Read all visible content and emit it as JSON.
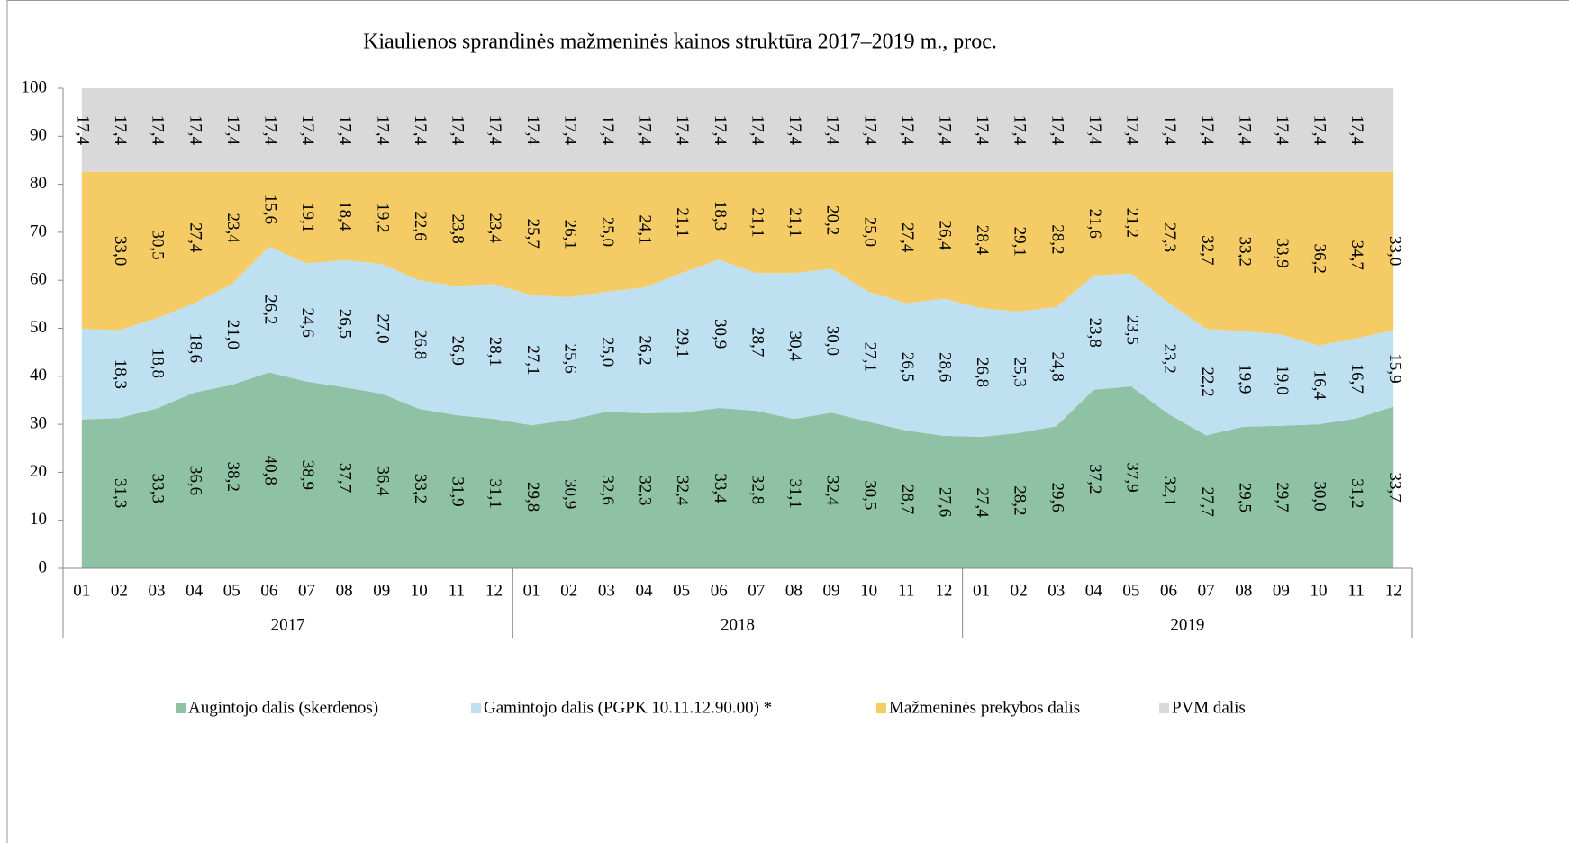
{
  "chart_data": {
    "type": "stacked_area",
    "title": "Kiaulienos sprandinės mažmeninės  kainos struktūra 2017–2019 m., proc.",
    "categories": [
      "01",
      "02",
      "03",
      "04",
      "05",
      "06",
      "07",
      "08",
      "09",
      "10",
      "11",
      "12",
      "01",
      "02",
      "03",
      "04",
      "05",
      "06",
      "07",
      "08",
      "09",
      "10",
      "11",
      "12",
      "01",
      "02",
      "03",
      "04",
      "05",
      "06",
      "07",
      "08",
      "09",
      "10",
      "11",
      "12"
    ],
    "category_groups": [
      "2017",
      "2018",
      "2019"
    ],
    "ylim": [
      0,
      100
    ],
    "yticks": [
      0,
      10,
      20,
      30,
      40,
      50,
      60,
      70,
      80,
      90,
      100
    ],
    "legend": "bottom",
    "series": [
      {
        "name": "Augintojo dalis (skerdenos)",
        "color": "#8fc1a4",
        "values": [
          31.0,
          31.3,
          33.3,
          36.6,
          38.2,
          40.8,
          38.9,
          37.7,
          36.4,
          33.2,
          31.9,
          31.1,
          29.8,
          30.9,
          32.6,
          32.3,
          32.4,
          33.4,
          32.8,
          31.1,
          32.4,
          30.5,
          28.7,
          27.6,
          27.4,
          28.2,
          29.6,
          37.2,
          37.9,
          32.1,
          27.7,
          29.5,
          29.7,
          30.0,
          31.2,
          33.7
        ],
        "value_labels": [
          null,
          "31,3",
          "33,3",
          "36,6",
          "38,2",
          "40,8",
          "38,9",
          "37,7",
          "36,4",
          "33,2",
          "31,9",
          "31,1",
          "29,8",
          "30,9",
          "32,6",
          "32,3",
          "32,4",
          "33,4",
          "32,8",
          "31,1",
          "32,4",
          "30,5",
          "28,7",
          "27,6",
          "27,4",
          "28,2",
          "29,6",
          "37,2",
          "37,9",
          "32,1",
          "27,7",
          "29,5",
          "29,7",
          "30,0",
          "31,2",
          "33,7"
        ]
      },
      {
        "name": "Gamintojo dalis (PGPK 10.11.12.90.00) *",
        "color": "#bfe0f0",
        "values": [
          18.9,
          18.3,
          18.8,
          18.6,
          21.0,
          26.2,
          24.6,
          26.5,
          27.0,
          26.8,
          26.9,
          28.1,
          27.1,
          25.6,
          25.0,
          26.2,
          29.1,
          30.9,
          28.7,
          30.4,
          30.0,
          27.1,
          26.5,
          28.6,
          26.8,
          25.3,
          24.8,
          23.8,
          23.5,
          23.2,
          22.2,
          19.9,
          19.0,
          16.4,
          16.7,
          15.9
        ],
        "value_labels": [
          null,
          "18,3",
          "18,8",
          "18,6",
          "21,0",
          "26,2",
          "24,6",
          "26,5",
          "27,0",
          "26,8",
          "26,9",
          "28,1",
          "27,1",
          "25,6",
          "25,0",
          "26,2",
          "29,1",
          "30,9",
          "28,7",
          "30,4",
          "30,0",
          "27,1",
          "26,5",
          "28,6",
          "26,8",
          "25,3",
          "24,8",
          "23,8",
          "23,5",
          "23,2",
          "22,2",
          "19,9",
          "19,0",
          "16,4",
          "16,7",
          "15,9"
        ]
      },
      {
        "name": "Mažmeninės prekybos dalis",
        "color": "#f5cb66",
        "values": [
          32.7,
          33.0,
          30.5,
          27.4,
          23.4,
          15.6,
          19.1,
          18.4,
          19.2,
          22.6,
          23.8,
          23.4,
          25.7,
          26.1,
          25.0,
          24.1,
          21.1,
          18.3,
          21.1,
          21.1,
          20.2,
          25.0,
          27.4,
          26.4,
          28.4,
          29.1,
          28.2,
          21.6,
          21.2,
          27.3,
          32.7,
          33.2,
          33.9,
          36.2,
          34.7,
          33.0
        ],
        "value_labels": [
          null,
          "33,0",
          "30,5",
          "27,4",
          "23,4",
          "15,6",
          "19,1",
          "18,4",
          "19,2",
          "22,6",
          "23,8",
          "23,4",
          "25,7",
          "26,1",
          "25,0",
          "24,1",
          "21,1",
          "18,3",
          "21,1",
          "21,1",
          "20,2",
          "25,0",
          "27,4",
          "26,4",
          "28,4",
          "29,1",
          "28,2",
          "21,6",
          "21,2",
          "27,3",
          "32,7",
          "33,2",
          "33,9",
          "36,2",
          "34,7",
          "33,0"
        ]
      },
      {
        "name": "PVM dalis",
        "color": "#d9d9d9",
        "values": [
          17.4,
          17.4,
          17.4,
          17.4,
          17.4,
          17.4,
          17.4,
          17.4,
          17.4,
          17.4,
          17.4,
          17.4,
          17.4,
          17.4,
          17.4,
          17.4,
          17.4,
          17.4,
          17.4,
          17.4,
          17.4,
          17.4,
          17.4,
          17.4,
          17.4,
          17.4,
          17.4,
          17.4,
          17.4,
          17.4,
          17.4,
          17.4,
          17.4,
          17.4,
          17.4,
          17.4
        ],
        "value_labels": [
          "17,4",
          "17,4",
          "17,4",
          "17,4",
          "17,4",
          "17,4",
          "17,4",
          "17,4",
          "17,4",
          "17,4",
          "17,4",
          "17,4",
          "17,4",
          "17,4",
          "17,4",
          "17,4",
          "17,4",
          "17,4",
          "17,4",
          "17,4",
          "17,4",
          "17,4",
          "17,4",
          "17,4",
          "17,4",
          "17,4",
          "17,4",
          "17,4",
          "17,4",
          "17,4",
          "17,4",
          "17,4",
          "17,4",
          "17,4",
          "17,4",
          null
        ]
      }
    ]
  }
}
